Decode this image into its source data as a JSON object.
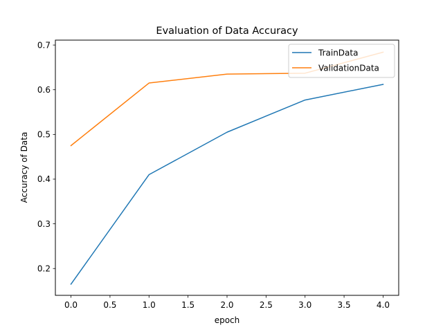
{
  "chart_data": {
    "type": "line",
    "title": "Evaluation of Data Accuracy",
    "xlabel": "epoch",
    "ylabel": "Accuracy of Data",
    "x": [
      0,
      1,
      2,
      3,
      4
    ],
    "series": [
      {
        "name": "TrainData",
        "color": "#1f77b4",
        "values": [
          0.165,
          0.41,
          0.505,
          0.577,
          0.612
        ]
      },
      {
        "name": "ValidationData",
        "color": "#ff7f0e",
        "values": [
          0.475,
          0.615,
          0.635,
          0.637,
          0.684
        ]
      }
    ],
    "xlim": [
      -0.2,
      4.2
    ],
    "ylim": [
      0.14,
      0.711
    ],
    "xticks": [
      0,
      0.5,
      1,
      1.5,
      2,
      2.5,
      3,
      3.5,
      4
    ],
    "xtick_labels": [
      "0.0",
      "0.5",
      "1.0",
      "1.5",
      "2.0",
      "2.5",
      "3.0",
      "3.5",
      "4.0"
    ],
    "yticks": [
      0.2,
      0.3,
      0.4,
      0.5,
      0.6,
      0.7
    ],
    "ytick_labels": [
      "0.2",
      "0.3",
      "0.4",
      "0.5",
      "0.6",
      "0.7"
    ],
    "grid": false,
    "legend_position": "upper right"
  }
}
